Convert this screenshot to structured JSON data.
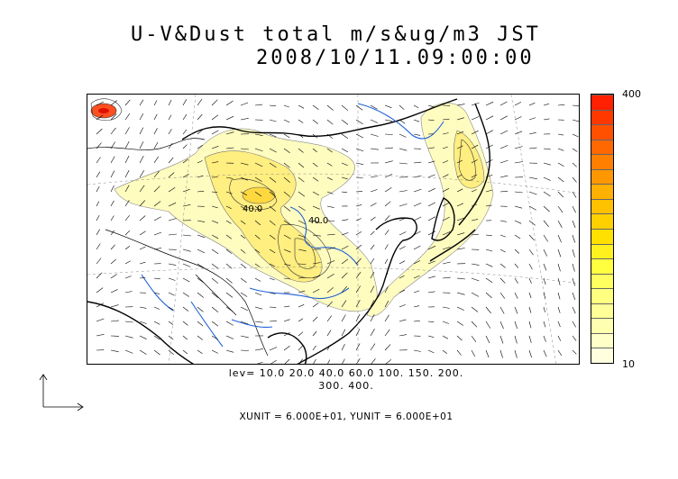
{
  "title": {
    "line1": "U-V&Dust total m/s&ug/m3 JST",
    "line2": "2008/10/11.09:00:00"
  },
  "colorbar": {
    "max_label": "400",
    "min_label": "10",
    "colors": [
      "#ffffe0",
      "#ffffc8",
      "#ffffb0",
      "#ffff98",
      "#ffff80",
      "#ffff60",
      "#ffff40",
      "#fff020",
      "#ffe000",
      "#ffd000",
      "#ffc000",
      "#ffb000",
      "#ff9800",
      "#ff8000",
      "#ff6800",
      "#ff5000",
      "#ff3800",
      "#ff2000"
    ]
  },
  "contour_labels": [
    "40.0",
    "40.0"
  ],
  "levels_line1": "lev= 10.0 20.0 40.0 60.0 100. 150. 200.",
  "levels_line2": "300. 400.",
  "units_text": "XUNIT = 6.000E+01, YUNIT = 6.000E+01",
  "colors": {
    "coast": "#000000",
    "rivers": "#1e5fd8",
    "dust_low": "#ffffc0",
    "dust_mid": "#ffe860",
    "dust_high": "#ff3000"
  }
}
